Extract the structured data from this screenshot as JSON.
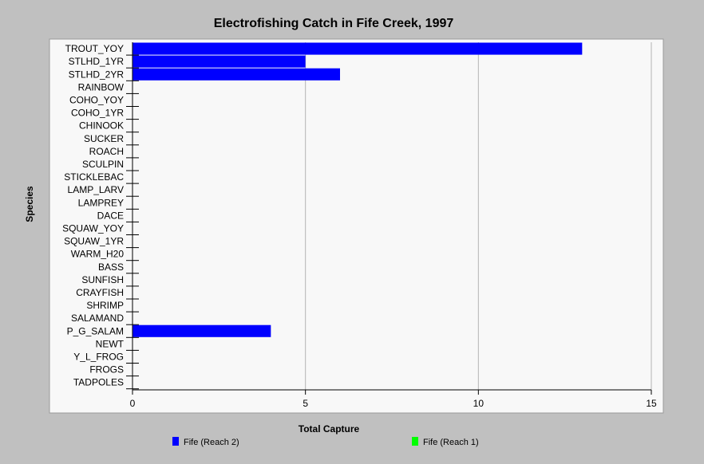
{
  "chart_data": {
    "type": "bar",
    "orientation": "horizontal",
    "title": "Electrofishing Catch in Fife Creek, 1997",
    "xlabel": "Total Capture",
    "ylabel": "Species",
    "xlim": [
      0,
      15
    ],
    "xticks": [
      0,
      5,
      10,
      15
    ],
    "grid": true,
    "legend_position": "bottom",
    "categories": [
      "TROUT_YOY",
      "STLHD_1YR",
      "STLHD_2YR",
      "RAINBOW",
      "COHO_YOY",
      "COHO_1YR",
      "CHINOOK",
      "SUCKER",
      "ROACH",
      "SCULPIN",
      "STICKLEBAC",
      "LAMP_LARV",
      "LAMPREY",
      "DACE",
      "SQUAW_YOY",
      "SQUAW_1YR",
      "WARM_H20",
      "BASS",
      "SUNFISH",
      "CRAYFISH",
      "SHRIMP",
      "SALAMAND",
      "P_G_SALAM",
      "NEWT",
      "Y_L_FROG",
      "FROGS",
      "TADPOLES"
    ],
    "series": [
      {
        "name": "Fife (Reach 2)",
        "color": "#0000ff",
        "values": [
          13,
          5,
          6,
          0,
          0,
          0,
          0,
          0,
          0,
          0,
          0,
          0,
          0,
          0,
          0,
          0,
          0,
          0,
          0,
          0,
          0,
          0,
          4,
          0,
          0,
          0,
          0
        ]
      },
      {
        "name": "Fife (Reach 1)",
        "color": "#00ff00",
        "values": [
          0,
          0,
          0,
          0,
          0,
          0,
          0,
          0,
          0,
          0,
          0,
          0,
          0,
          0,
          0,
          0,
          0,
          0,
          0,
          0,
          0,
          0,
          0,
          0,
          0,
          0,
          0
        ]
      }
    ]
  },
  "colors": {
    "background": "#c0c0c0",
    "plot_background": "#f8f8f8",
    "grid": "#b4b4b4"
  }
}
